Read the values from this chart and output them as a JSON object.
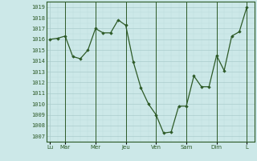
{
  "background_color": "#cce8e8",
  "line_color": "#2d5a27",
  "grid_major_color": "#aacccc",
  "grid_minor_color": "#bbdddd",
  "ylim": [
    1006.5,
    1019.5
  ],
  "yticks": [
    1007,
    1008,
    1009,
    1010,
    1011,
    1012,
    1013,
    1014,
    1015,
    1016,
    1017,
    1018,
    1019
  ],
  "day_names": [
    "Lu",
    "Mar",
    "Mer",
    "Jeu",
    "Ven",
    "Sam",
    "Dim",
    "L"
  ],
  "day_positions": [
    0,
    2,
    6,
    10,
    14,
    18,
    22,
    26
  ],
  "vline_positions": [
    2,
    6,
    10,
    14,
    18,
    22,
    26
  ],
  "data_x": [
    0,
    1,
    2,
    3,
    4,
    5,
    6,
    7,
    8,
    9,
    10,
    11,
    12,
    13,
    14,
    15,
    16,
    17,
    18,
    19,
    20,
    21,
    22,
    23,
    24,
    25,
    26
  ],
  "data_y": [
    1016.0,
    1016.1,
    1016.3,
    1014.4,
    1014.2,
    1015.0,
    1017.0,
    1016.6,
    1016.6,
    1017.8,
    1017.3,
    1013.9,
    1011.5,
    1010.0,
    1009.0,
    1007.3,
    1007.4,
    1009.8,
    1009.8,
    1012.6,
    1011.6,
    1011.6,
    1014.5,
    1013.1,
    1016.3,
    1016.7,
    1019.0
  ]
}
